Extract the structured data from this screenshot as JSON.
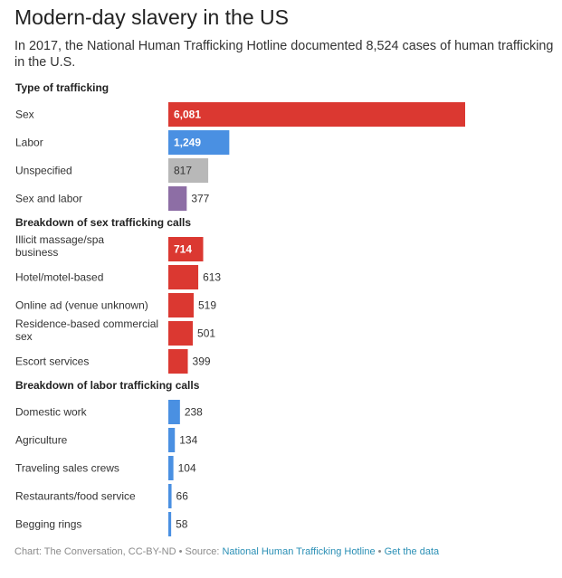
{
  "chart_data": {
    "type": "bar",
    "orientation": "horizontal",
    "title": "Modern-day slavery in the US",
    "subtitle": "In 2017, the National Human Trafficking Hotline documented 8,524 cases of human trafficking in the U.S.",
    "xlim": [
      0,
      6081
    ],
    "groups": [
      {
        "heading": "Type of trafficking",
        "bars": [
          {
            "label": "Sex",
            "value": 6081,
            "value_label": "6,081",
            "color": "#db3831"
          },
          {
            "label": "Labor",
            "value": 1249,
            "value_label": "1,249",
            "color": "#4a90e2"
          },
          {
            "label": "Unspecified",
            "value": 817,
            "value_label": "817",
            "color": "#b8b8b8"
          },
          {
            "label": "Sex and labor",
            "value": 377,
            "value_label": "377",
            "color": "#8d6ea5"
          }
        ]
      },
      {
        "heading": "Breakdown of sex trafficking calls",
        "bars": [
          {
            "label": "Illicit massage/spa business",
            "value": 714,
            "value_label": "714",
            "color": "#db3831"
          },
          {
            "label": "Hotel/motel-based",
            "value": 613,
            "value_label": "613",
            "color": "#db3831"
          },
          {
            "label": "Online ad (venue unknown)",
            "value": 519,
            "value_label": "519",
            "color": "#db3831"
          },
          {
            "label": "Residence-based commercial sex",
            "value": 501,
            "value_label": "501",
            "color": "#db3831"
          },
          {
            "label": "Escort services",
            "value": 399,
            "value_label": "399",
            "color": "#db3831"
          }
        ]
      },
      {
        "heading": "Breakdown of labor trafficking calls",
        "bars": [
          {
            "label": "Domestic work",
            "value": 238,
            "value_label": "238",
            "color": "#4a90e2"
          },
          {
            "label": "Agriculture",
            "value": 134,
            "value_label": "134",
            "color": "#4a90e2"
          },
          {
            "label": "Traveling sales crews",
            "value": 104,
            "value_label": "104",
            "color": "#4a90e2"
          },
          {
            "label": "Restaurants/food service",
            "value": 66,
            "value_label": "66",
            "color": "#4a90e2"
          },
          {
            "label": "Begging rings",
            "value": 58,
            "value_label": "58",
            "color": "#4a90e2"
          }
        ]
      }
    ]
  },
  "footer": {
    "prefix": "Chart: The Conversation, CC-BY-ND • Source: ",
    "source_link": "National Human Trafficking Hotline",
    "separator": " • ",
    "data_link": "Get the data"
  }
}
